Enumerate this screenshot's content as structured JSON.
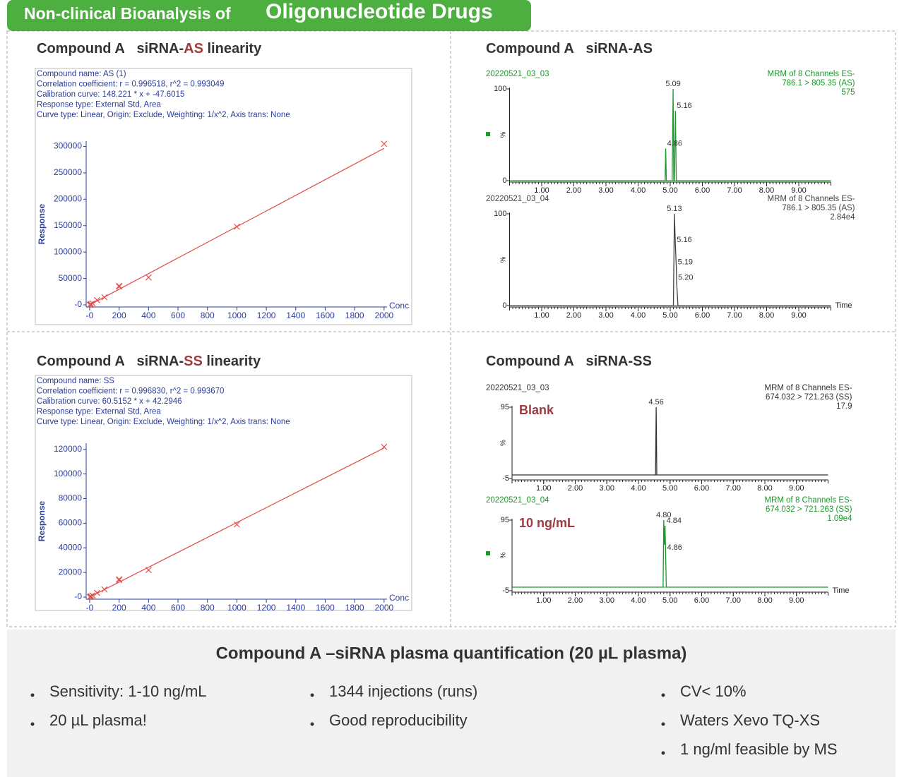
{
  "header": {
    "prefix": "Non-clinical Bioanalysis of",
    "emphasis": "Oligonucleotide Drugs"
  },
  "chart_data": [
    {
      "type": "scatter",
      "title": {
        "compound": "Compound A",
        "prefix": "siRNA-",
        "analyte": "AS",
        "suffix": "linearity"
      },
      "info": [
        "Compound name: AS (1)",
        "Correlation coefficient: r = 0.996518, r^2 = 0.993049",
        "Calibration curve: 148.221 * x + -47.6015",
        "Response type: External Std, Area",
        "Curve type: Linear, Origin: Exclude, Weighting: 1/x^2, Axis trans: None"
      ],
      "x_label": "Conc",
      "y_label": "Response",
      "color": "#e0534e",
      "x": [
        1,
        2,
        5,
        10,
        20,
        50,
        100,
        200,
        200,
        400,
        1000,
        2000
      ],
      "y": [
        100,
        250,
        700,
        1500,
        3000,
        9000,
        14500,
        36000,
        34500,
        52000,
        148000,
        305000
      ],
      "fit": {
        "x": [
          0,
          2000
        ],
        "y": [
          -47.6015,
          296394.4
        ]
      },
      "xlim": [
        -24,
        2020
      ],
      "ylim": [
        -4000,
        310000
      ],
      "xticks": [
        {
          "value": 0,
          "label": "-0"
        },
        200,
        400,
        600,
        800,
        1000,
        1200,
        1400,
        1600,
        1800,
        2000
      ],
      "yticks": [
        {
          "value": 0,
          "label": "-0"
        },
        50000,
        100000,
        150000,
        200000,
        250000,
        300000
      ]
    },
    {
      "type": "line",
      "title": {
        "compound": "Compound A",
        "prefix": "siRNA-AS"
      },
      "x_label": "Time",
      "y_label": "%",
      "xlim": [
        0,
        10
      ],
      "ylim": [
        0,
        100
      ],
      "yticks": [
        0,
        100
      ],
      "xticks": [
        {
          "value": 1,
          "label": "1.00"
        },
        {
          "value": 2,
          "label": "2.00"
        },
        {
          "value": 3,
          "label": "3.00"
        },
        {
          "value": 4,
          "label": "4.00"
        },
        {
          "value": 5,
          "label": "5.00"
        },
        {
          "value": 6,
          "label": "6.00"
        },
        {
          "value": 7,
          "label": "7.00"
        },
        {
          "value": 8,
          "label": "8.00"
        },
        {
          "value": 9,
          "label": "9.00"
        }
      ],
      "panels": [
        {
          "sample": "20220521_03_03",
          "method": "MRM of 8 Channels ES-",
          "transition": "786.1 > 805.35 (AS)",
          "intensity": "575",
          "color": "#1a9a2a",
          "x": [
            0,
            4.84,
            4.86,
            4.88,
            5.06,
            5.09,
            5.11,
            5.13,
            5.16,
            5.19,
            10
          ],
          "y": [
            0,
            0,
            35,
            0,
            0,
            100,
            0,
            0,
            76,
            0,
            0
          ],
          "peaks": [
            {
              "label": "5.09",
              "x": 5.09,
              "y": 100
            },
            {
              "label": "5.16",
              "x": 5.16,
              "y": 76
            },
            {
              "label": "4.86",
              "x": 4.86,
              "y": 35
            }
          ]
        },
        {
          "sample": "20220521_03_04",
          "method": "MRM of 8 Channels ES-",
          "transition": "786.1 > 805.35 (AS)",
          "intensity": "2.84e4",
          "color": "#444444",
          "x": [
            0,
            5.1,
            5.13,
            5.16,
            5.19,
            5.2,
            5.24,
            10
          ],
          "y": [
            0,
            0,
            100,
            66,
            42,
            25,
            0,
            0
          ],
          "peaks": [
            {
              "label": "5.13",
              "x": 5.13,
              "y": 100
            },
            {
              "label": "5.16",
              "x": 5.16,
              "y": 66
            },
            {
              "label": "5.19",
              "x": 5.19,
              "y": 42
            },
            {
              "label": "5.20",
              "x": 5.2,
              "y": 25
            }
          ]
        }
      ]
    },
    {
      "type": "scatter",
      "title": {
        "compound": "Compound A",
        "prefix": "siRNA-",
        "analyte": "SS",
        "suffix": "linearity"
      },
      "info": [
        "Compound name: SS",
        "Correlation coefficient: r = 0.996830, r^2 = 0.993670",
        "Calibration curve: 60.5152 * x + 42.2946",
        "Response type: External Std, Area",
        "Curve type: Linear, Origin: Exclude, Weighting: 1/x^2, Axis trans: None"
      ],
      "x_label": "Conc",
      "y_label": "Response",
      "color": "#e0534e",
      "x": [
        1,
        2,
        5,
        10,
        20,
        50,
        100,
        200,
        200,
        400,
        1000,
        2000
      ],
      "y": [
        100,
        150,
        350,
        650,
        1300,
        3400,
        6200,
        14500,
        13800,
        22000,
        59000,
        122000
      ],
      "fit": {
        "x": [
          0,
          2000
        ],
        "y": [
          42.2946,
          121072.7
        ]
      },
      "xlim": [
        -24,
        2020
      ],
      "ylim": [
        -1700,
        125000
      ],
      "xticks": [
        {
          "value": 0,
          "label": "-0"
        },
        200,
        400,
        600,
        800,
        1000,
        1200,
        1400,
        1600,
        1800,
        2000
      ],
      "yticks": [
        {
          "value": 0,
          "label": "-0"
        },
        20000,
        40000,
        60000,
        80000,
        100000,
        120000
      ]
    },
    {
      "type": "line",
      "title": {
        "compound": "Compound A",
        "prefix": "siRNA-SS"
      },
      "x_label": "Time",
      "y_label": "%",
      "xlim": [
        0,
        10
      ],
      "ylim": [
        -5,
        95
      ],
      "yticks": [
        -5,
        95
      ],
      "xticks": [
        {
          "value": 1,
          "label": "1.00"
        },
        {
          "value": 2,
          "label": "2.00"
        },
        {
          "value": 3,
          "label": "3.00"
        },
        {
          "value": 4,
          "label": "4.00"
        },
        {
          "value": 5,
          "label": "5.00"
        },
        {
          "value": 6,
          "label": "6.00"
        },
        {
          "value": 7,
          "label": "7.00"
        },
        {
          "value": 8,
          "label": "8.00"
        },
        {
          "value": 9,
          "label": "9.00"
        }
      ],
      "panels": [
        {
          "sample": "20220521_03_03",
          "method": "MRM of 8 Channels ES-",
          "transition": "674.032 > 721.263 (SS)",
          "intensity": "17.9",
          "color": "#333333",
          "label": "Blank",
          "x": [
            0,
            4.54,
            4.56,
            4.58,
            10
          ],
          "y": [
            0,
            0,
            95,
            0,
            0
          ],
          "peaks": [
            {
              "label": "4.56",
              "x": 4.56,
              "y": 95
            }
          ]
        },
        {
          "sample": "20220521_03_04",
          "method": "MRM of 8 Channels ES-",
          "transition": "674.032 > 721.263 (SS)",
          "intensity": "1.09e4",
          "color": "#1a9a2a",
          "label": "10 ng/mL",
          "x": [
            0,
            4.78,
            4.8,
            4.82,
            4.84,
            4.86,
            4.88,
            10
          ],
          "y": [
            0,
            0,
            95,
            60,
            87,
            49,
            0,
            0
          ],
          "peaks": [
            {
              "label": "4.80",
              "x": 4.8,
              "y": 95
            },
            {
              "label": "4.84",
              "x": 4.84,
              "y": 87
            },
            {
              "label": "4.86",
              "x": 4.86,
              "y": 49
            }
          ]
        }
      ]
    }
  ],
  "summary": {
    "title": "Compound A –siRNA plasma quantification (20 µL plasma)",
    "columns": [
      [
        "Sensitivity: 1-10 ng/mL",
        "20 µL plasma!"
      ],
      [
        "1344 injections (runs)",
        "Good reproducibility"
      ],
      [
        "CV< 10%",
        "Waters Xevo TQ-XS",
        "1 ng/ml feasible by MS"
      ]
    ]
  }
}
